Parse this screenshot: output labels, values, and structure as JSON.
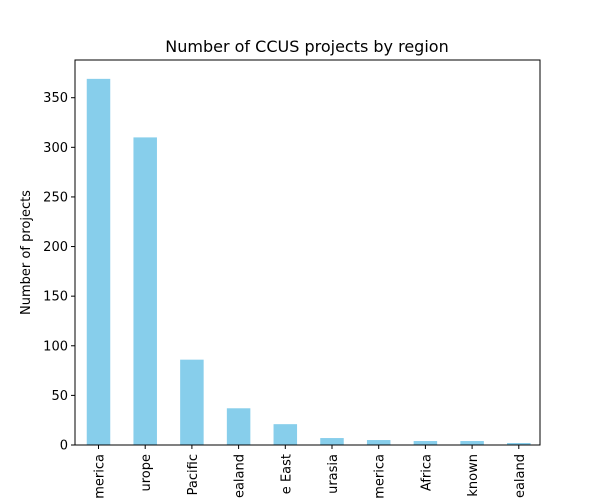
{
  "chart_data": {
    "type": "bar",
    "title": "Number of CCUS projects by region",
    "xlabel": "",
    "ylabel": "Number of projects",
    "categories": [
      "merica",
      "urope",
      "Pacific",
      "ealand",
      "e East",
      "urasia",
      "merica",
      "Africa",
      "known",
      "ealand"
    ],
    "values": [
      369,
      310,
      86,
      37,
      21,
      7,
      5,
      4,
      4,
      2
    ],
    "ylim": [
      0,
      388
    ],
    "yticks": [
      0,
      50,
      100,
      150,
      200,
      250,
      300,
      350
    ],
    "grid": false,
    "bar_color": "#87CEEB"
  }
}
